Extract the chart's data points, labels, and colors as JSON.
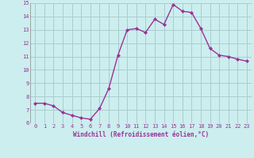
{
  "x": [
    0,
    1,
    2,
    3,
    4,
    5,
    6,
    7,
    8,
    9,
    10,
    11,
    12,
    13,
    14,
    15,
    16,
    17,
    18,
    19,
    20,
    21,
    22,
    23
  ],
  "y": [
    7.5,
    7.5,
    7.3,
    6.8,
    6.6,
    6.4,
    6.3,
    7.1,
    8.6,
    11.1,
    13.0,
    13.1,
    12.8,
    13.8,
    13.4,
    14.9,
    14.4,
    14.3,
    13.1,
    11.6,
    11.1,
    11.0,
    10.8,
    10.65
  ],
  "line_color": "#993399",
  "marker": "D",
  "marker_size": 2.0,
  "bg_color": "#cceeee",
  "grid_color": "#aacccc",
  "xlabel": "Windchill (Refroidissement éolien,°C)",
  "xlabel_color": "#993399",
  "tick_color": "#993399",
  "ylim": [
    6,
    15
  ],
  "xlim_min": -0.5,
  "xlim_max": 23.5,
  "yticks": [
    6,
    7,
    8,
    9,
    10,
    11,
    12,
    13,
    14,
    15
  ],
  "xticks": [
    0,
    1,
    2,
    3,
    4,
    5,
    6,
    7,
    8,
    9,
    10,
    11,
    12,
    13,
    14,
    15,
    16,
    17,
    18,
    19,
    20,
    21,
    22,
    23
  ],
  "tick_fontsize": 5.0,
  "xlabel_fontsize": 5.5,
  "linewidth": 1.0
}
